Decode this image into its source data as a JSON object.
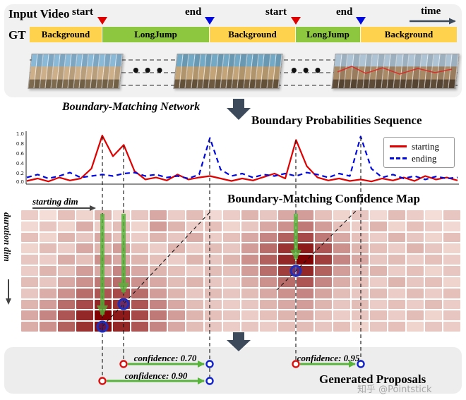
{
  "input_video": {
    "label": "Input Video",
    "gt_label": "GT",
    "time_label": "time",
    "ellipsis": "•••",
    "markers": [
      {
        "label": "start",
        "color": "#e00000"
      },
      {
        "label": "end",
        "color": "#0008e0"
      },
      {
        "label": "start",
        "color": "#e00000"
      },
      {
        "label": "end",
        "color": "#0008e0"
      }
    ],
    "segments": [
      {
        "label": "Background",
        "color": "#FFD24D",
        "width_pct": 17.0
      },
      {
        "label": "LongJump",
        "color": "#8DC63F",
        "width_pct": 25.1
      },
      {
        "label": "Background",
        "color": "#FFD24D",
        "width_pct": 20.1
      },
      {
        "label": "LongJump",
        "color": "#8DC63F",
        "width_pct": 15.2
      },
      {
        "label": "Background",
        "color": "#FFD24D",
        "width_pct": 22.6
      }
    ]
  },
  "network": {
    "label": "Boundary-Matching Network"
  },
  "chart_data": [
    {
      "type": "line",
      "title": "Boundary Probabilities Sequence",
      "ylim": [
        0,
        1
      ],
      "y_ticks": [
        "1.0",
        "0.8",
        "0.6",
        "0.4",
        "0.2",
        "0.0"
      ],
      "legend_position": "right",
      "grid": false,
      "series": [
        {
          "name": "starting",
          "color": "#e00000",
          "style": "solid",
          "values": [
            0.05,
            0.1,
            0.04,
            0.12,
            0.06,
            0.1,
            0.3,
            0.97,
            0.55,
            0.78,
            0.25,
            0.08,
            0.12,
            0.06,
            0.18,
            0.08,
            0.12,
            0.15,
            0.1,
            0.05,
            0.1,
            0.06,
            0.13,
            0.2,
            0.1,
            0.88,
            0.35,
            0.12,
            0.06,
            0.1,
            0.05,
            0.08,
            0.04,
            0.1,
            0.06,
            0.12,
            0.05,
            0.15,
            0.08,
            0.12,
            0.06
          ]
        },
        {
          "name": "ending",
          "color": "#0008e0",
          "style": "dashed",
          "values": [
            0.12,
            0.18,
            0.1,
            0.15,
            0.22,
            0.12,
            0.15,
            0.18,
            0.15,
            0.2,
            0.22,
            0.15,
            0.18,
            0.12,
            0.15,
            0.1,
            0.18,
            0.92,
            0.28,
            0.15,
            0.2,
            0.12,
            0.18,
            0.15,
            0.2,
            0.15,
            0.22,
            0.18,
            0.12,
            0.2,
            0.15,
            0.95,
            0.3,
            0.12,
            0.18,
            0.1,
            0.15,
            0.08,
            0.14,
            0.1,
            0.12
          ]
        }
      ]
    },
    {
      "type": "heatmap",
      "title": "Boundary-Matching Confidence Map",
      "xlabel": "starting dim",
      "ylabel": "duration dim",
      "colormap": "white-to-darkred",
      "rows": 11,
      "cols": 24,
      "cells": [
        [
          0.15,
          0.08,
          0.2,
          0.12,
          0.25,
          0.1,
          0.18,
          0.3,
          0.15,
          0.22,
          0.1,
          0.15,
          0.25,
          0.18,
          0.3,
          0.35,
          0.2,
          0.12,
          0.18,
          0.1,
          0.22,
          0.15,
          0.08,
          0.18
        ],
        [
          0.1,
          0.18,
          0.12,
          0.28,
          0.15,
          0.22,
          0.12,
          0.35,
          0.25,
          0.15,
          0.2,
          0.12,
          0.18,
          0.3,
          0.4,
          0.5,
          0.35,
          0.2,
          0.15,
          0.25,
          0.12,
          0.2,
          0.15,
          0.1
        ],
        [
          0.2,
          0.12,
          0.25,
          0.18,
          0.3,
          0.2,
          0.15,
          0.25,
          0.18,
          0.28,
          0.15,
          0.2,
          0.3,
          0.45,
          0.6,
          0.7,
          0.5,
          0.3,
          0.2,
          0.15,
          0.25,
          0.18,
          0.12,
          0.2
        ],
        [
          0.12,
          0.22,
          0.15,
          0.3,
          0.25,
          0.35,
          0.2,
          0.15,
          0.25,
          0.15,
          0.22,
          0.18,
          0.35,
          0.55,
          0.8,
          0.9,
          0.65,
          0.4,
          0.25,
          0.2,
          0.15,
          0.25,
          0.18,
          0.12
        ],
        [
          0.18,
          0.15,
          0.28,
          0.2,
          0.4,
          0.3,
          0.25,
          0.2,
          0.15,
          0.25,
          0.18,
          0.25,
          0.4,
          0.6,
          0.85,
          1.0,
          0.75,
          0.45,
          0.3,
          0.18,
          0.22,
          0.15,
          0.2,
          0.15
        ],
        [
          0.15,
          0.25,
          0.2,
          0.35,
          0.3,
          0.45,
          0.3,
          0.25,
          0.2,
          0.15,
          0.22,
          0.2,
          0.35,
          0.55,
          0.75,
          0.85,
          0.6,
          0.35,
          0.22,
          0.25,
          0.15,
          0.2,
          0.12,
          0.18
        ],
        [
          0.22,
          0.18,
          0.3,
          0.4,
          0.5,
          0.55,
          0.4,
          0.3,
          0.22,
          0.25,
          0.18,
          0.15,
          0.28,
          0.4,
          0.55,
          0.65,
          0.45,
          0.28,
          0.2,
          0.15,
          0.25,
          0.18,
          0.2,
          0.12
        ],
        [
          0.18,
          0.28,
          0.4,
          0.55,
          0.65,
          0.7,
          0.55,
          0.35,
          0.25,
          0.18,
          0.22,
          0.18,
          0.22,
          0.3,
          0.4,
          0.45,
          0.32,
          0.22,
          0.18,
          0.22,
          0.15,
          0.22,
          0.15,
          0.2
        ],
        [
          0.25,
          0.35,
          0.55,
          0.7,
          0.85,
          0.8,
          0.65,
          0.45,
          0.3,
          0.22,
          0.18,
          0.15,
          0.18,
          0.25,
          0.3,
          0.35,
          0.25,
          0.18,
          0.22,
          0.15,
          0.2,
          0.15,
          0.22,
          0.15
        ],
        [
          0.3,
          0.45,
          0.65,
          0.85,
          1.0,
          0.9,
          0.7,
          0.5,
          0.35,
          0.25,
          0.2,
          0.18,
          0.15,
          0.2,
          0.25,
          0.28,
          0.2,
          0.15,
          0.18,
          0.2,
          0.15,
          0.22,
          0.12,
          0.18
        ],
        [
          0.28,
          0.4,
          0.6,
          0.8,
          0.95,
          0.85,
          0.65,
          0.45,
          0.3,
          0.22,
          0.18,
          0.15,
          0.18,
          0.15,
          0.2,
          0.22,
          0.18,
          0.2,
          0.12,
          0.18,
          0.2,
          0.12,
          0.18,
          0.15
        ]
      ]
    }
  ],
  "proposals": {
    "title": "Generated Proposals",
    "items": [
      {
        "label": "confidence: 0.70"
      },
      {
        "label": "confidence: 0.90"
      },
      {
        "label": "confidence: 0.95"
      }
    ]
  },
  "watermark": {
    "text": "知乎 @Pointstick"
  },
  "colors": {
    "background_segment": "#FFD24D",
    "action_segment": "#8DC63F",
    "starting_line": "#e00000",
    "ending_line": "#0008e0",
    "dark_arrow": "#3d4a5c",
    "green_arrow": "#57b33a"
  }
}
